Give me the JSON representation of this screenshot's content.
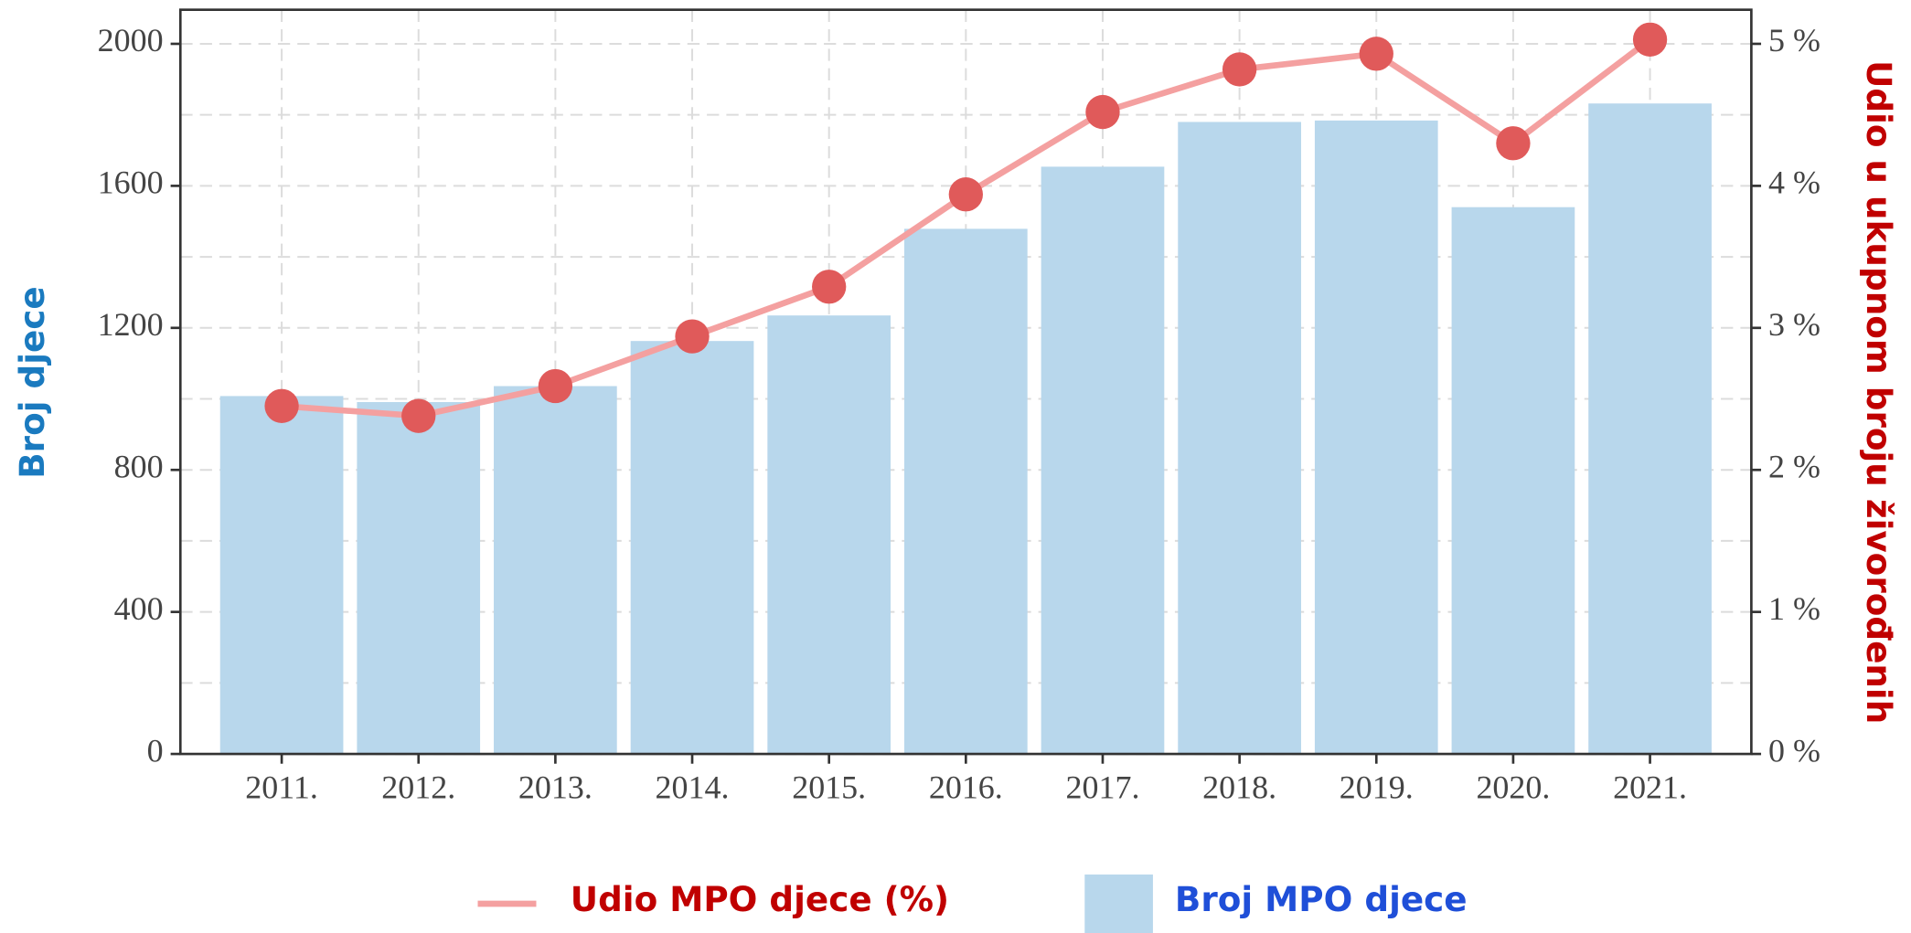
{
  "chart_data": {
    "type": "bar_line",
    "categories": [
      "2011.",
      "2012.",
      "2013.",
      "2014.",
      "2015.",
      "2016.",
      "2017.",
      "2018.",
      "2019.",
      "2020.",
      "2021."
    ],
    "series": [
      {
        "name": "Broj MPO djece",
        "type": "bar",
        "color": "#b8d7ec",
        "values": [
          1008,
          991,
          1036,
          1163,
          1235,
          1479,
          1654,
          1780,
          1784,
          1540,
          1832
        ]
      },
      {
        "name": "Udio MPO djece (%)",
        "type": "line",
        "axis": "y2",
        "color": "#f4a0a0",
        "marker_color": "#e05a5a",
        "values": [
          2.45,
          2.38,
          2.59,
          2.94,
          3.29,
          3.94,
          4.52,
          4.82,
          4.93,
          4.3,
          5.03
        ]
      }
    ],
    "ylabel": "Broj djece",
    "y2label": "Udio u ukupnom broju živorođenih",
    "ylim": [
      0,
      2096
    ],
    "yticks": [
      0,
      400,
      800,
      1200,
      1600,
      2000
    ],
    "y2lim": [
      0,
      5.24
    ],
    "y2ticks": [
      {
        "value": 0,
        "label": "0 %"
      },
      {
        "value": 1,
        "label": "1 %"
      },
      {
        "value": 2,
        "label": "2 %"
      },
      {
        "value": 3,
        "label": "3 %"
      },
      {
        "value": 4,
        "label": "4 %"
      },
      {
        "value": 5,
        "label": "5 %"
      }
    ],
    "grid": true
  }
}
